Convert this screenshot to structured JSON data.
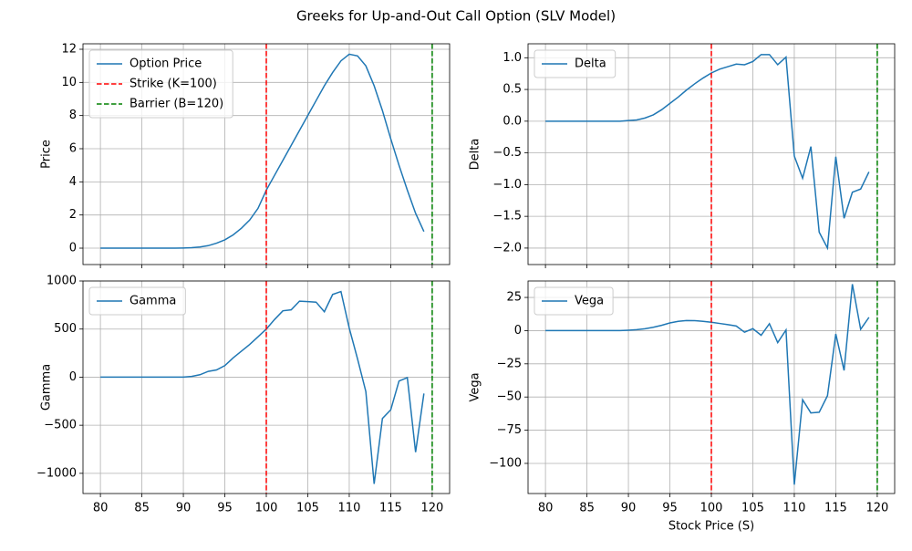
{
  "title": "Greeks for Up-and-Out Call Option (SLV Model)",
  "chart_data": [
    {
      "type": "line",
      "ylabel": "Price",
      "x": [
        80,
        81,
        82,
        83,
        84,
        85,
        86,
        87,
        88,
        89,
        90,
        91,
        92,
        93,
        94,
        95,
        96,
        97,
        98,
        99,
        100,
        101,
        102,
        103,
        104,
        105,
        106,
        107,
        108,
        109,
        110,
        111,
        112,
        113,
        114,
        115,
        116,
        117,
        118,
        119
      ],
      "series": [
        {
          "name": "Option Price",
          "color": "#1f77b4",
          "values": [
            0,
            0,
            0,
            0,
            0,
            0,
            0,
            0,
            0,
            0,
            0.01,
            0.03,
            0.07,
            0.15,
            0.3,
            0.5,
            0.8,
            1.2,
            1.7,
            2.4,
            3.5,
            4.4,
            5.3,
            6.2,
            7.1,
            8.0,
            8.9,
            9.8,
            10.6,
            11.3,
            11.7,
            11.6,
            11.0,
            9.8,
            8.3,
            6.6,
            5.0,
            3.5,
            2.1,
            1.0
          ]
        }
      ],
      "vlines": [
        {
          "x": 100,
          "name": "Strike (K=100)",
          "color": "#ff0000"
        },
        {
          "x": 120,
          "name": "Barrier (B=120)",
          "color": "#008000"
        }
      ],
      "xlim": [
        77.9,
        122.1
      ],
      "xticks": [
        80,
        85,
        90,
        95,
        100,
        105,
        110,
        115,
        120
      ],
      "show_xtick_labels": false,
      "ylim": [
        -0.99,
        12.33
      ],
      "yticks": [
        0,
        2,
        4,
        6,
        8,
        10,
        12
      ],
      "grid": true,
      "legend": "upper-left"
    },
    {
      "type": "line",
      "ylabel": "Delta",
      "x": [
        80,
        81,
        82,
        83,
        84,
        85,
        86,
        87,
        88,
        89,
        90,
        91,
        92,
        93,
        94,
        95,
        96,
        97,
        98,
        99,
        100,
        101,
        102,
        103,
        104,
        105,
        106,
        107,
        108,
        109,
        110,
        111,
        112,
        113,
        114,
        115,
        116,
        117,
        118,
        119
      ],
      "series": [
        {
          "name": "Delta",
          "color": "#1f77b4",
          "values": [
            0,
            0,
            0,
            0,
            0,
            0,
            0,
            0,
            0,
            0,
            0.01,
            0.02,
            0.05,
            0.1,
            0.18,
            0.28,
            0.38,
            0.49,
            0.59,
            0.68,
            0.76,
            0.82,
            0.86,
            0.9,
            0.89,
            0.94,
            1.05,
            1.05,
            0.89,
            1.01,
            -0.55,
            -0.9,
            -0.4,
            -1.75,
            -2.0,
            -0.56,
            -1.53,
            -1.12,
            -1.07,
            -0.8
          ]
        }
      ],
      "vlines": [
        {
          "x": 100,
          "color": "#ff0000"
        },
        {
          "x": 120,
          "color": "#008000"
        }
      ],
      "xlim": [
        77.9,
        122.1
      ],
      "xticks": [
        80,
        85,
        90,
        95,
        100,
        105,
        110,
        115,
        120
      ],
      "show_xtick_labels": false,
      "ylim": [
        -2.26,
        1.22
      ],
      "yticks": [
        {
          "value": -2.0,
          "label": "−2.0"
        },
        {
          "value": -1.5,
          "label": "−1.5"
        },
        {
          "value": -1.0,
          "label": "−1.0"
        },
        {
          "value": -0.5,
          "label": "−0.5"
        },
        {
          "value": 0,
          "label": "0.0"
        },
        {
          "value": 0.5,
          "label": "0.5"
        },
        {
          "value": 1.0,
          "label": "1.0"
        }
      ],
      "grid": true,
      "legend": "upper-left"
    },
    {
      "type": "line",
      "ylabel": "Gamma",
      "x": [
        80,
        81,
        82,
        83,
        84,
        85,
        86,
        87,
        88,
        89,
        90,
        91,
        92,
        93,
        94,
        95,
        96,
        97,
        98,
        99,
        100,
        101,
        102,
        103,
        104,
        105,
        106,
        107,
        108,
        109,
        110,
        111,
        112,
        113,
        114,
        115,
        116,
        117,
        118,
        119
      ],
      "series": [
        {
          "name": "Gamma",
          "color": "#1f77b4",
          "values": [
            0,
            0,
            0,
            0,
            0,
            0,
            0,
            0,
            0,
            0,
            1,
            8,
            25,
            60,
            75,
            120,
            200,
            270,
            340,
            420,
            500,
            600,
            690,
            700,
            790,
            785,
            780,
            680,
            860,
            890,
            510,
            190,
            -150,
            -1110,
            -430,
            -340,
            -40,
            -5,
            -780,
            -170
          ]
        }
      ],
      "vlines": [
        {
          "x": 100,
          "color": "#ff0000"
        },
        {
          "x": 120,
          "color": "#008000"
        }
      ],
      "xlim": [
        77.9,
        122.1
      ],
      "xticks": [
        80,
        85,
        90,
        95,
        100,
        105,
        110,
        115,
        120
      ],
      "show_xtick_labels": true,
      "ylim": [
        -1210,
        1000
      ],
      "yticks": [
        {
          "value": -1000,
          "label": "−1000"
        },
        {
          "value": -500,
          "label": "−500"
        },
        0,
        500,
        1000
      ],
      "grid": true,
      "legend": "upper-left"
    },
    {
      "type": "line",
      "ylabel": "Vega",
      "xlabel": "Stock Price (S)",
      "x": [
        80,
        81,
        82,
        83,
        84,
        85,
        86,
        87,
        88,
        89,
        90,
        91,
        92,
        93,
        94,
        95,
        96,
        97,
        98,
        99,
        100,
        101,
        102,
        103,
        104,
        105,
        106,
        107,
        108,
        109,
        110,
        111,
        112,
        113,
        114,
        115,
        116,
        117,
        118,
        119
      ],
      "series": [
        {
          "name": "Vega",
          "color": "#1f77b4",
          "values": [
            0,
            0,
            0,
            0,
            0,
            0,
            0,
            0,
            0,
            0,
            0.3,
            0.7,
            1.4,
            2.5,
            4,
            5.8,
            7,
            7.6,
            7.5,
            7,
            6.3,
            5.4,
            4.5,
            3.5,
            -1.2,
            1.5,
            -3.5,
            5.2,
            -9,
            0.5,
            -116,
            -52,
            -62,
            -61.5,
            -49,
            -2.5,
            -30,
            35,
            1,
            10
          ]
        }
      ],
      "vlines": [
        {
          "x": 100,
          "color": "#ff0000"
        },
        {
          "x": 120,
          "color": "#008000"
        }
      ],
      "xlim": [
        77.9,
        122.1
      ],
      "xticks": [
        80,
        85,
        90,
        95,
        100,
        105,
        110,
        115,
        120
      ],
      "show_xtick_labels": true,
      "ylim": [
        -122.7,
        37.4
      ],
      "yticks": [
        {
          "value": -100,
          "label": "−100"
        },
        {
          "value": -75,
          "label": "−75"
        },
        {
          "value": -50,
          "label": "−50"
        },
        {
          "value": -25,
          "label": "−25"
        },
        0,
        25
      ],
      "grid": true,
      "legend": "upper-left"
    }
  ]
}
